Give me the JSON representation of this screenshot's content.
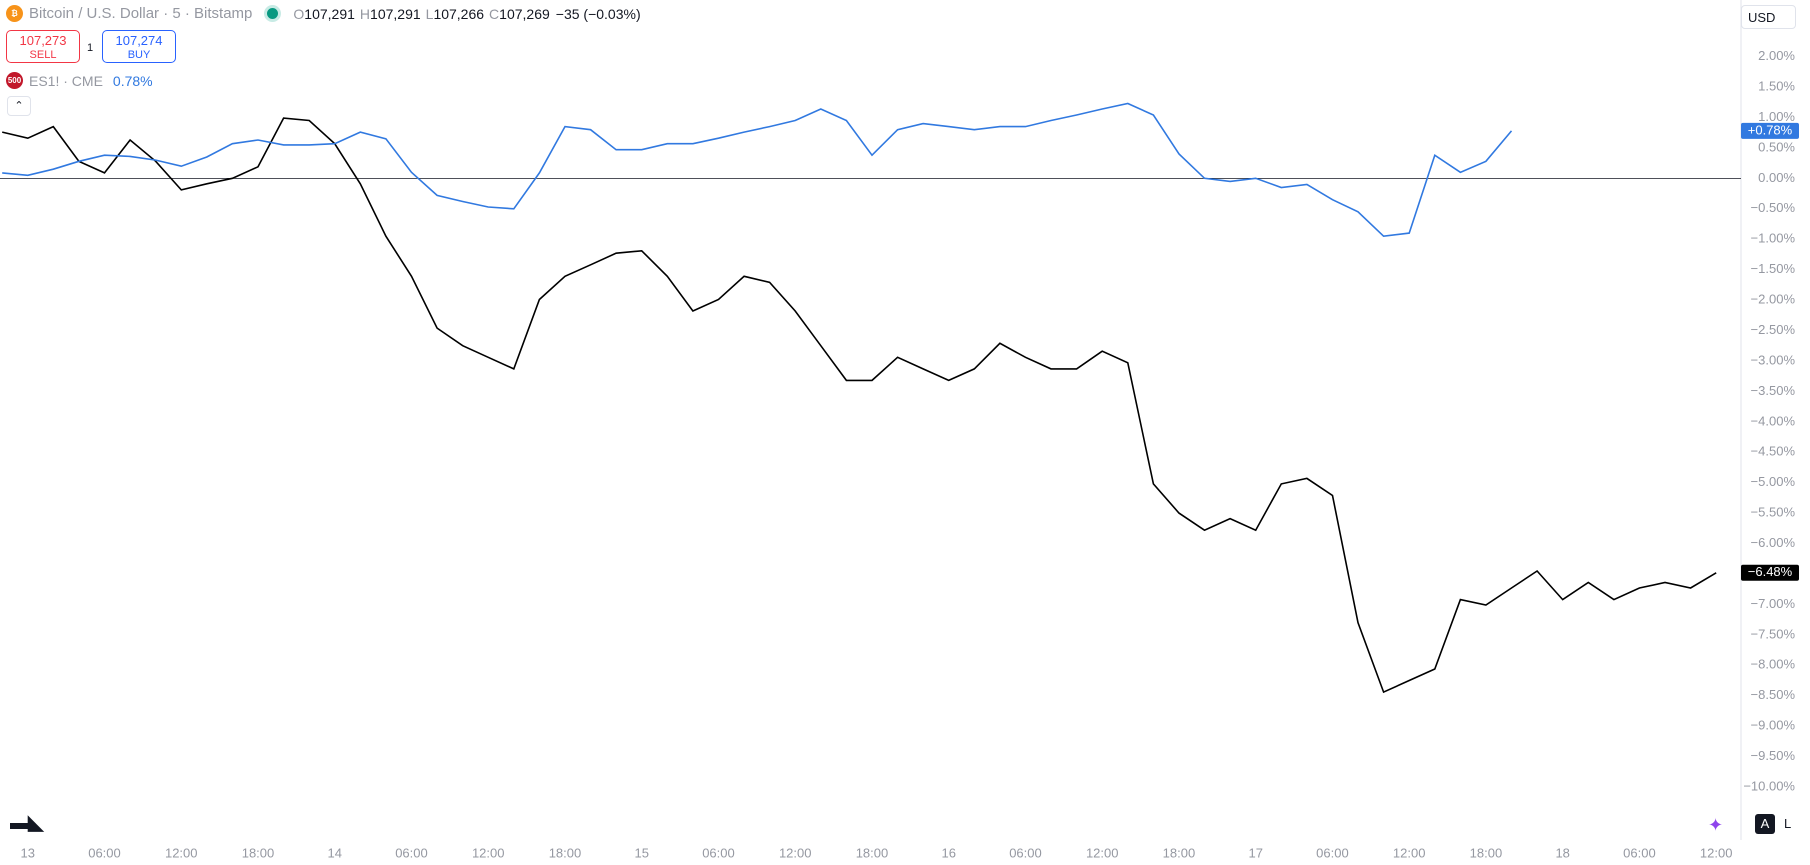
{
  "chart_data": {
    "type": "line",
    "x": [
      -2,
      0,
      2,
      4,
      6,
      8,
      10,
      12,
      14,
      16,
      18,
      20,
      22,
      24,
      26,
      28,
      30,
      32,
      34,
      36,
      38,
      40,
      42,
      44,
      46,
      48,
      50,
      52,
      54,
      56,
      58,
      60,
      62,
      64,
      66,
      68,
      70,
      72,
      74,
      76,
      78,
      80,
      82,
      84,
      86,
      88,
      90,
      92,
      94,
      96,
      98,
      100,
      102,
      104,
      106,
      108,
      110,
      112,
      114,
      116,
      118,
      120,
      122,
      124,
      126,
      128,
      130,
      132
    ],
    "series": [
      {
        "name": "Bitcoin / U.S. Dollar · 5 · Bitstamp",
        "color": "#000000",
        "last_label": "−6.48%",
        "values": [
          0.76,
          0.66,
          0.85,
          0.28,
          0.09,
          0.63,
          0.28,
          -0.19,
          -0.09,
          0,
          0.19,
          0.99,
          0.95,
          0.57,
          -0.09,
          -0.95,
          -1.61,
          -2.46,
          -2.75,
          -2.94,
          -3.13,
          -1.99,
          -1.61,
          -1.42,
          -1.23,
          -1.19,
          -1.61,
          -2.18,
          -1.99,
          -1.61,
          -1.71,
          -2.18,
          -2.75,
          -3.32,
          -3.32,
          -2.94,
          -3.13,
          -3.32,
          -3.13,
          -2.71,
          -2.94,
          -3.13,
          -3.13,
          -2.84,
          -3.03,
          -5.02,
          -5.5,
          -5.78,
          -5.59,
          -5.78,
          -5.02,
          -4.93,
          -5.21,
          -7.3,
          -8.44,
          -8.25,
          -8.06,
          -6.92,
          -7.01,
          -6.73,
          -6.45,
          -6.92,
          -6.64,
          -6.92,
          -6.73,
          -6.64,
          -6.73,
          -6.48
        ]
      },
      {
        "name": "ES1! · CME",
        "color": "#3179e0",
        "last_label": "+0.78%",
        "legend_value": "0.78%",
        "values": [
          0.09,
          0.05,
          0.15,
          0.28,
          0.38,
          0.36,
          0.3,
          0.2,
          0.35,
          0.57,
          0.63,
          0.55,
          0.55,
          0.57,
          0.76,
          0.65,
          0.1,
          -0.28,
          -0.38,
          -0.47,
          -0.5,
          0.09,
          0.85,
          0.8,
          0.47,
          0.47,
          0.57,
          0.57,
          0.66,
          0.76,
          0.85,
          0.95,
          1.14,
          0.95,
          0.38,
          0.8,
          0.9,
          0.85,
          0.8,
          0.85,
          0.85,
          0.95,
          1.04,
          1.14,
          1.23,
          1.04,
          0.4,
          0,
          -0.05,
          0,
          -0.15,
          -0.1,
          -0.35,
          -0.55,
          -0.95,
          -0.9,
          0.38,
          0.1,
          0.28,
          0.78,
          null,
          null,
          null,
          null,
          null,
          null,
          null,
          null
        ]
      }
    ],
    "xlim": [
      -2.17,
      133.94
    ],
    "xticks": [
      {
        "value": 0,
        "label": "13"
      },
      {
        "value": 6,
        "label": "06:00"
      },
      {
        "value": 12,
        "label": "12:00"
      },
      {
        "value": 18,
        "label": "18:00"
      },
      {
        "value": 24,
        "label": "14"
      },
      {
        "value": 30,
        "label": "06:00"
      },
      {
        "value": 36,
        "label": "12:00"
      },
      {
        "value": 42,
        "label": "18:00"
      },
      {
        "value": 48,
        "label": "15"
      },
      {
        "value": 54,
        "label": "06:00"
      },
      {
        "value": 60,
        "label": "12:00"
      },
      {
        "value": 66,
        "label": "18:00"
      },
      {
        "value": 72,
        "label": "16"
      },
      {
        "value": 78,
        "label": "06:00"
      },
      {
        "value": 84,
        "label": "12:00"
      },
      {
        "value": 90,
        "label": "18:00"
      },
      {
        "value": 96,
        "label": "17"
      },
      {
        "value": 102,
        "label": "06:00"
      },
      {
        "value": 108,
        "label": "12:00"
      },
      {
        "value": 114,
        "label": "18:00"
      },
      {
        "value": 120,
        "label": "18"
      },
      {
        "value": 126,
        "label": "06:00"
      },
      {
        "value": 132,
        "label": "12:00"
      }
    ],
    "ylim": [
      -10.87,
      2.93
    ],
    "yticks": [
      {
        "value": 2,
        "label": "2.00%"
      },
      {
        "value": 1.5,
        "label": "1.50%"
      },
      {
        "value": 1,
        "label": "1.00%"
      },
      {
        "value": 0.5,
        "label": "0.50%"
      },
      {
        "value": 0,
        "label": "0.00%"
      },
      {
        "value": -0.5,
        "label": "−0.50%"
      },
      {
        "value": -1,
        "label": "−1.00%"
      },
      {
        "value": -1.5,
        "label": "−1.50%"
      },
      {
        "value": -2,
        "label": "−2.00%"
      },
      {
        "value": -2.5,
        "label": "−2.50%"
      },
      {
        "value": -3,
        "label": "−3.00%"
      },
      {
        "value": -3.5,
        "label": "−3.50%"
      },
      {
        "value": -4,
        "label": "−4.00%"
      },
      {
        "value": -4.5,
        "label": "−4.50%"
      },
      {
        "value": -5,
        "label": "−5.00%"
      },
      {
        "value": -5.5,
        "label": "−5.50%"
      },
      {
        "value": -6,
        "label": "−6.00%"
      },
      {
        "value": -6.5,
        "label": "−6.50%"
      },
      {
        "value": -7,
        "label": "−7.00%"
      },
      {
        "value": -7.5,
        "label": "−7.50%"
      },
      {
        "value": -8,
        "label": "−8.00%"
      },
      {
        "value": -8.5,
        "label": "−8.50%"
      },
      {
        "value": -9,
        "label": "−9.00%"
      },
      {
        "value": -9.5,
        "label": "−9.50%"
      },
      {
        "value": -10,
        "label": "−10.00%"
      }
    ],
    "grid": false
  },
  "ui": {
    "ohlc": [
      {
        "key": "O",
        "value": "107,291"
      },
      {
        "key": "H",
        "value": "107,291"
      },
      {
        "key": "L",
        "value": "107,266"
      },
      {
        "key": "C",
        "value": "107,269"
      }
    ],
    "change": "−35 (−0.03%)",
    "sell": {
      "price": "107,273",
      "label": "SELL"
    },
    "spread": "1",
    "buy": {
      "price": "107,274",
      "label": "BUY"
    },
    "es_icon": "500",
    "currency": "USD",
    "auto": "A",
    "log": "L"
  }
}
